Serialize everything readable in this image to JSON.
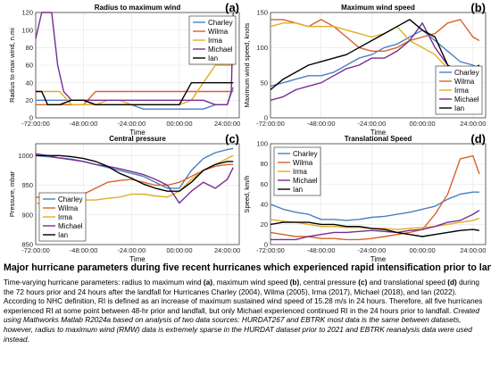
{
  "colors": {
    "Charley": "#4a7fc1",
    "Wilma": "#d8622a",
    "Irma": "#e0ad24",
    "Michael": "#7a2d8f",
    "Ian": "#000000"
  },
  "chart_data": [
    {
      "type": "line",
      "panel": "(a)",
      "title": "Radius to maximum wind",
      "xlabel": "Time",
      "ylabel": "Radius to max wind, n.mi",
      "xlim": [
        -72,
        30
      ],
      "ylim": [
        0,
        120
      ],
      "xticks": [
        -72,
        -48,
        -24,
        0,
        24
      ],
      "xtick_labels": [
        "-72:00:00",
        "-48:00:00",
        "-24:00:00",
        "00:00:00",
        "24:00:00"
      ],
      "yticks": [
        0,
        20,
        40,
        60,
        80,
        100,
        120
      ],
      "grid": true,
      "legend": "top-right",
      "series": [
        {
          "name": "Charley",
          "x": [
            -72,
            -66,
            -60,
            -54,
            -48,
            -42,
            -36,
            -30,
            -24,
            -18,
            -12,
            -6,
            0,
            6,
            12,
            18,
            24,
            27
          ],
          "y": [
            20,
            20,
            20,
            20,
            20,
            15,
            15,
            15,
            15,
            10,
            10,
            10,
            10,
            10,
            10,
            15,
            15,
            35
          ]
        },
        {
          "name": "Wilma",
          "x": [
            -72,
            -66,
            -60,
            -54,
            -48,
            -42,
            -36,
            -30,
            -24,
            -18,
            -12,
            -6,
            0,
            6,
            12,
            18,
            24,
            27
          ],
          "y": [
            15,
            15,
            15,
            15,
            15,
            30,
            30,
            30,
            30,
            30,
            30,
            30,
            30,
            30,
            30,
            30,
            30,
            30
          ]
        },
        {
          "name": "Irma",
          "x": [
            -72,
            -66,
            -60,
            -54,
            -48,
            -42,
            -36,
            -30,
            -24,
            -18,
            -12,
            -6,
            0,
            6,
            12,
            18,
            24,
            27
          ],
          "y": [
            30,
            30,
            30,
            15,
            15,
            15,
            20,
            20,
            15,
            15,
            15,
            15,
            15,
            20,
            40,
            60,
            60,
            60
          ]
        },
        {
          "name": "Michael",
          "x": [
            -72,
            -69,
            -67,
            -64,
            -61,
            -58,
            -54,
            -50,
            -48,
            -42,
            -36,
            -30,
            -24,
            -18,
            -12,
            -6,
            0,
            6,
            12,
            18,
            24,
            26,
            27
          ],
          "y": [
            90,
            120,
            120,
            120,
            60,
            30,
            20,
            20,
            20,
            20,
            20,
            20,
            20,
            20,
            20,
            20,
            20,
            20,
            20,
            15,
            15,
            30,
            120
          ]
        },
        {
          "name": "Ian",
          "x": [
            -72,
            -69,
            -66,
            -60,
            -54,
            -48,
            -42,
            -36,
            -30,
            -24,
            -18,
            -12,
            -6,
            0,
            6,
            12,
            18,
            24,
            27
          ],
          "y": [
            30,
            30,
            15,
            15,
            20,
            20,
            15,
            15,
            15,
            15,
            15,
            15,
            15,
            15,
            40,
            40,
            40,
            40,
            40
          ]
        }
      ]
    },
    {
      "type": "line",
      "panel": "(b)",
      "title": "Maximum wind speed",
      "xlabel": "Time",
      "ylabel": "Maximum wind speed, knots",
      "xlim": [
        -72,
        30
      ],
      "ylim": [
        0,
        150
      ],
      "xticks": [
        -72,
        -48,
        -24,
        0,
        24
      ],
      "xtick_labels": [
        "-72:00:00",
        "-48:00:00",
        "-24:00:00",
        "00:00:00",
        "24:00:00"
      ],
      "yticks": [
        0,
        50,
        100,
        150
      ],
      "grid": true,
      "legend": "bottom-right",
      "series": [
        {
          "name": "Charley",
          "x": [
            -72,
            -66,
            -60,
            -54,
            -48,
            -42,
            -36,
            -30,
            -24,
            -18,
            -12,
            -6,
            0,
            6,
            12,
            18,
            24,
            27
          ],
          "y": [
            45,
            50,
            55,
            60,
            60,
            65,
            75,
            85,
            90,
            100,
            105,
            115,
            125,
            110,
            95,
            80,
            75,
            70
          ]
        },
        {
          "name": "Wilma",
          "x": [
            -72,
            -66,
            -60,
            -54,
            -48,
            -42,
            -36,
            -30,
            -24,
            -18,
            -12,
            -6,
            0,
            6,
            12,
            18,
            24,
            27
          ],
          "y": [
            140,
            140,
            135,
            130,
            140,
            130,
            115,
            100,
            95,
            95,
            100,
            110,
            115,
            120,
            135,
            140,
            115,
            110
          ]
        },
        {
          "name": "Irma",
          "x": [
            -72,
            -66,
            -60,
            -54,
            -48,
            -42,
            -36,
            -30,
            -24,
            -18,
            -12,
            -6,
            0,
            6,
            12,
            18,
            24,
            27
          ],
          "y": [
            130,
            135,
            135,
            130,
            130,
            130,
            125,
            120,
            115,
            120,
            130,
            110,
            100,
            90,
            70,
            55,
            50,
            50
          ]
        },
        {
          "name": "Michael",
          "x": [
            -72,
            -66,
            -60,
            -54,
            -48,
            -42,
            -36,
            -30,
            -24,
            -18,
            -12,
            -6,
            0,
            6,
            12,
            18,
            24,
            27
          ],
          "y": [
            25,
            30,
            40,
            45,
            50,
            60,
            70,
            75,
            85,
            85,
            95,
            110,
            135,
            100,
            75,
            60,
            50,
            45
          ]
        },
        {
          "name": "Ian",
          "x": [
            -72,
            -66,
            -60,
            -54,
            -48,
            -42,
            -36,
            -30,
            -24,
            -18,
            -12,
            -6,
            0,
            6,
            12,
            18,
            24,
            27
          ],
          "y": [
            40,
            55,
            65,
            75,
            80,
            85,
            90,
            100,
            110,
            120,
            130,
            140,
            125,
            115,
            75,
            65,
            70,
            75
          ]
        }
      ]
    },
    {
      "type": "line",
      "panel": "(c)",
      "title": "Central pressure",
      "xlabel": "Time",
      "ylabel": "Pressure, mbar",
      "xlim": [
        -72,
        30
      ],
      "ylim": [
        850,
        1020
      ],
      "xticks": [
        -72,
        -48,
        -24,
        0,
        24
      ],
      "xtick_labels": [
        "-72:00:00",
        "-48:00:00",
        "-24:00:00",
        "00:00:00",
        "24:00:00"
      ],
      "yticks": [
        850,
        900,
        950,
        1000
      ],
      "grid": true,
      "legend": "bottom-left",
      "series": [
        {
          "name": "Charley",
          "x": [
            -72,
            -66,
            -60,
            -54,
            -48,
            -42,
            -36,
            -30,
            -24,
            -18,
            -12,
            -6,
            0,
            6,
            12,
            18,
            24,
            27
          ],
          "y": [
            1000,
            998,
            996,
            994,
            990,
            985,
            980,
            975,
            970,
            965,
            955,
            945,
            945,
            975,
            995,
            1005,
            1010,
            1012
          ]
        },
        {
          "name": "Wilma",
          "x": [
            -72,
            -66,
            -60,
            -54,
            -48,
            -42,
            -36,
            -30,
            -24,
            -18,
            -12,
            -6,
            0,
            6,
            12,
            18,
            24,
            27
          ],
          "y": [
            930,
            928,
            925,
            930,
            935,
            945,
            955,
            958,
            960,
            955,
            950,
            950,
            955,
            965,
            975,
            982,
            985,
            985
          ]
        },
        {
          "name": "Irma",
          "x": [
            -72,
            -66,
            -60,
            -54,
            -48,
            -42,
            -36,
            -30,
            -24,
            -18,
            -12,
            -6,
            0,
            6,
            12,
            18,
            24,
            27
          ],
          "y": [
            920,
            918,
            920,
            922,
            925,
            925,
            928,
            930,
            935,
            935,
            932,
            930,
            940,
            960,
            975,
            985,
            995,
            1000
          ]
        },
        {
          "name": "Michael",
          "x": [
            -72,
            -66,
            -60,
            -54,
            -48,
            -42,
            -36,
            -30,
            -24,
            -18,
            -12,
            -6,
            0,
            6,
            12,
            18,
            24,
            27
          ],
          "y": [
            1003,
            1000,
            996,
            993,
            990,
            985,
            982,
            978,
            973,
            968,
            960,
            950,
            920,
            940,
            955,
            945,
            960,
            980
          ]
        },
        {
          "name": "Ian",
          "x": [
            -72,
            -66,
            -60,
            -54,
            -48,
            -42,
            -36,
            -30,
            -24,
            -18,
            -12,
            -6,
            0,
            6,
            12,
            18,
            24,
            27
          ],
          "y": [
            1000,
            1000,
            1000,
            998,
            995,
            990,
            982,
            970,
            962,
            952,
            945,
            940,
            940,
            955,
            975,
            985,
            990,
            990
          ]
        }
      ]
    },
    {
      "type": "line",
      "panel": "(d)",
      "title": "Translational Speed",
      "xlabel": "Time",
      "ylabel": "Speed, km/h",
      "xlim": [
        -72,
        30
      ],
      "ylim": [
        0,
        100
      ],
      "xticks": [
        -72,
        -48,
        -24,
        0,
        24
      ],
      "xtick_labels": [
        "-72:00:00",
        "-48:00:00",
        "-24:00:00",
        "00:00:00",
        "24:00:00"
      ],
      "yticks": [
        0,
        20,
        40,
        60,
        80,
        100
      ],
      "grid": true,
      "legend": "top-left",
      "series": [
        {
          "name": "Charley",
          "x": [
            -72,
            -66,
            -60,
            -54,
            -48,
            -42,
            -36,
            -30,
            -24,
            -18,
            -12,
            -6,
            0,
            6,
            12,
            18,
            24,
            27
          ],
          "y": [
            40,
            35,
            32,
            30,
            25,
            25,
            24,
            25,
            27,
            28,
            30,
            32,
            35,
            38,
            45,
            50,
            52,
            52
          ]
        },
        {
          "name": "Wilma",
          "x": [
            -72,
            -66,
            -60,
            -54,
            -48,
            -42,
            -36,
            -30,
            -24,
            -18,
            -12,
            -6,
            0,
            6,
            12,
            18,
            24,
            27
          ],
          "y": [
            12,
            10,
            8,
            8,
            6,
            6,
            5,
            5,
            6,
            8,
            10,
            12,
            15,
            30,
            50,
            85,
            88,
            70
          ]
        },
        {
          "name": "Irma",
          "x": [
            -72,
            -66,
            -60,
            -54,
            -48,
            -42,
            -36,
            -30,
            -24,
            -18,
            -12,
            -6,
            0,
            6,
            12,
            18,
            24,
            27
          ],
          "y": [
            25,
            23,
            22,
            20,
            18,
            18,
            17,
            17,
            16,
            16,
            15,
            16,
            17,
            18,
            20,
            22,
            24,
            26
          ]
        },
        {
          "name": "Michael",
          "x": [
            -72,
            -66,
            -60,
            -54,
            -48,
            -42,
            -36,
            -30,
            -24,
            -18,
            -12,
            -6,
            0,
            6,
            12,
            18,
            24,
            27
          ],
          "y": [
            5,
            5,
            5,
            8,
            10,
            12,
            12,
            13,
            14,
            13,
            12,
            14,
            15,
            18,
            22,
            24,
            30,
            34
          ]
        },
        {
          "name": "Ian",
          "x": [
            -72,
            -66,
            -60,
            -54,
            -48,
            -42,
            -36,
            -30,
            -24,
            -18,
            -12,
            -6,
            0,
            6,
            12,
            18,
            24,
            27
          ],
          "y": [
            20,
            22,
            22,
            22,
            20,
            20,
            18,
            18,
            16,
            15,
            12,
            10,
            8,
            10,
            12,
            14,
            15,
            14
          ]
        }
      ]
    }
  ],
  "caption": {
    "title": "Major hurricane parameters during five recent hurricanes which experienced rapid intensification prior to landfall",
    "lines": [
      {
        "t": "Time-varying hurricane parameters: radius to maximum wind "
      },
      {
        "b": "(a)"
      },
      {
        "t": ", maximum wind speed "
      },
      {
        "b": "(b)"
      },
      {
        "t": ", central pressure "
      },
      {
        "b": "(c)"
      },
      {
        "t": " and translational speed "
      },
      {
        "b": "(d)"
      },
      {
        "t": " during the 72 hours prior and 24 hours after the landfall for Hurricanes Charley (2004), Wilma (2005), Irma (2017), Michael (2018), and Ian (2022). According to NHC definition, RI is defined as an increase of maximum sustained wind speed of 15.28 m/s in 24 hours. Therefore, all five hurricanes experienced RI at some point between 48-hr prior and landfall, but only Michael experienced continued RI in the 24 hours prior to landfall. "
      },
      {
        "i": "Created using Mathworks Matlab R2024a based on analysis of two data sources: HURDAT267 and EBTRK most data is the same between datasets, however, radius to maximum wind (RMW) data is extremely sparse in the HURDAT dataset prior to 2021 and EBTRK reanalysis data were used instead."
      }
    ]
  }
}
